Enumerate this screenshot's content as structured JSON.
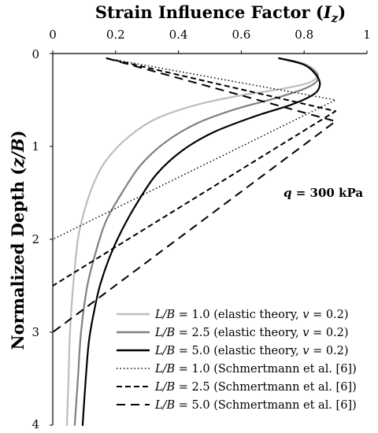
{
  "chart_data": {
    "type": "line",
    "title": "Strain Influence Factor (I_z)",
    "title_parts": {
      "text": "Strain Influence Factor (",
      "var": "I",
      "sub": "z",
      "close": ")"
    },
    "ylabel_parts": {
      "text": "Normalized Depth (",
      "var": "z/B",
      "close": ")"
    },
    "x_axis_position": "top",
    "y_axis_inverted": true,
    "xlim": [
      0,
      1
    ],
    "ylim": [
      0,
      4
    ],
    "x_ticks": [
      "0",
      "0.2",
      "0.4",
      "0.6",
      "0.8",
      "1"
    ],
    "y_ticks": [
      "0",
      "1",
      "2",
      "3",
      "4"
    ],
    "grid": false,
    "legend_position": "bottom-right",
    "annotation": {
      "var": "q",
      "text": " = 300 kPa"
    },
    "series": [
      {
        "name": "L/B = 1.0 (elastic theory, v = 0.2)",
        "legend_var": "L/B",
        "legend_text": " = 1.0 (elastic theory, ",
        "legend_var2": "v",
        "legend_tail": " = 0.2)",
        "color": "#bdbdbd",
        "width": 2.2,
        "dash": "",
        "points": [
          [
            0.72,
            0.05
          ],
          [
            0.8,
            0.11
          ],
          [
            0.84,
            0.2
          ],
          [
            0.84,
            0.26
          ],
          [
            0.81,
            0.32
          ],
          [
            0.73,
            0.38
          ],
          [
            0.6,
            0.45
          ],
          [
            0.46,
            0.55
          ],
          [
            0.33,
            0.7
          ],
          [
            0.24,
            0.9
          ],
          [
            0.17,
            1.15
          ],
          [
            0.13,
            1.4
          ],
          [
            0.1,
            1.7
          ],
          [
            0.08,
            2.0
          ],
          [
            0.065,
            2.5
          ],
          [
            0.055,
            3.0
          ],
          [
            0.05,
            3.5
          ],
          [
            0.045,
            4.0
          ]
        ]
      },
      {
        "name": "L/B = 2.5 (elastic theory, v = 0.2)",
        "legend_var": "L/B",
        "legend_text": " = 2.5 (elastic theory, ",
        "legend_var2": "v",
        "legend_tail": " = 0.2)",
        "color": "#808080",
        "width": 2.2,
        "dash": "",
        "points": [
          [
            0.72,
            0.05
          ],
          [
            0.8,
            0.12
          ],
          [
            0.84,
            0.22
          ],
          [
            0.84,
            0.3
          ],
          [
            0.8,
            0.38
          ],
          [
            0.71,
            0.48
          ],
          [
            0.58,
            0.6
          ],
          [
            0.46,
            0.75
          ],
          [
            0.36,
            0.95
          ],
          [
            0.28,
            1.2
          ],
          [
            0.22,
            1.5
          ],
          [
            0.17,
            1.8
          ],
          [
            0.14,
            2.1
          ],
          [
            0.11,
            2.5
          ],
          [
            0.09,
            3.0
          ],
          [
            0.08,
            3.5
          ],
          [
            0.07,
            4.0
          ]
        ]
      },
      {
        "name": "L/B = 5.0 (elastic theory, v = 0.2)",
        "legend_var": "L/B",
        "legend_text": " = 5.0 (elastic theory, ",
        "legend_var2": "v",
        "legend_tail": " = 0.2)",
        "color": "#000000",
        "width": 2.2,
        "dash": "",
        "points": [
          [
            0.72,
            0.05
          ],
          [
            0.8,
            0.12
          ],
          [
            0.84,
            0.24
          ],
          [
            0.85,
            0.34
          ],
          [
            0.83,
            0.44
          ],
          [
            0.76,
            0.55
          ],
          [
            0.64,
            0.68
          ],
          [
            0.51,
            0.85
          ],
          [
            0.41,
            1.05
          ],
          [
            0.33,
            1.3
          ],
          [
            0.27,
            1.6
          ],
          [
            0.22,
            1.9
          ],
          [
            0.18,
            2.2
          ],
          [
            0.15,
            2.5
          ],
          [
            0.13,
            2.8
          ],
          [
            0.115,
            3.1
          ],
          [
            0.105,
            3.5
          ],
          [
            0.095,
            4.0
          ]
        ]
      },
      {
        "name": "L/B = 1.0 (Schmertmann et al. [6])",
        "legend_var": "L/B",
        "legend_text": " = 1.0 (Schmertmann et al. [6])",
        "color": "#000000",
        "width": 1.5,
        "dash": "1.5,3",
        "points": [
          [
            0.17,
            0.05
          ],
          [
            0.9,
            0.5
          ],
          [
            0.0,
            2.0
          ]
        ]
      },
      {
        "name": "L/B = 2.5 (Schmertmann et al. [6])",
        "legend_var": "L/B",
        "legend_text": " = 2.5 (Schmertmann et al. [6])",
        "color": "#000000",
        "width": 2.0,
        "dash": "7,4",
        "points": [
          [
            0.17,
            0.05
          ],
          [
            0.9,
            0.62
          ],
          [
            0.0,
            2.5
          ]
        ]
      },
      {
        "name": "L/B = 5.0 (Schmertmann et al. [6])",
        "legend_var": "L/B",
        "legend_text": " = 5.0 (Schmertmann et al. [6])",
        "color": "#000000",
        "width": 2.0,
        "dash": "11,7",
        "points": [
          [
            0.17,
            0.05
          ],
          [
            0.9,
            0.73
          ],
          [
            0.0,
            3.0
          ]
        ]
      }
    ]
  }
}
